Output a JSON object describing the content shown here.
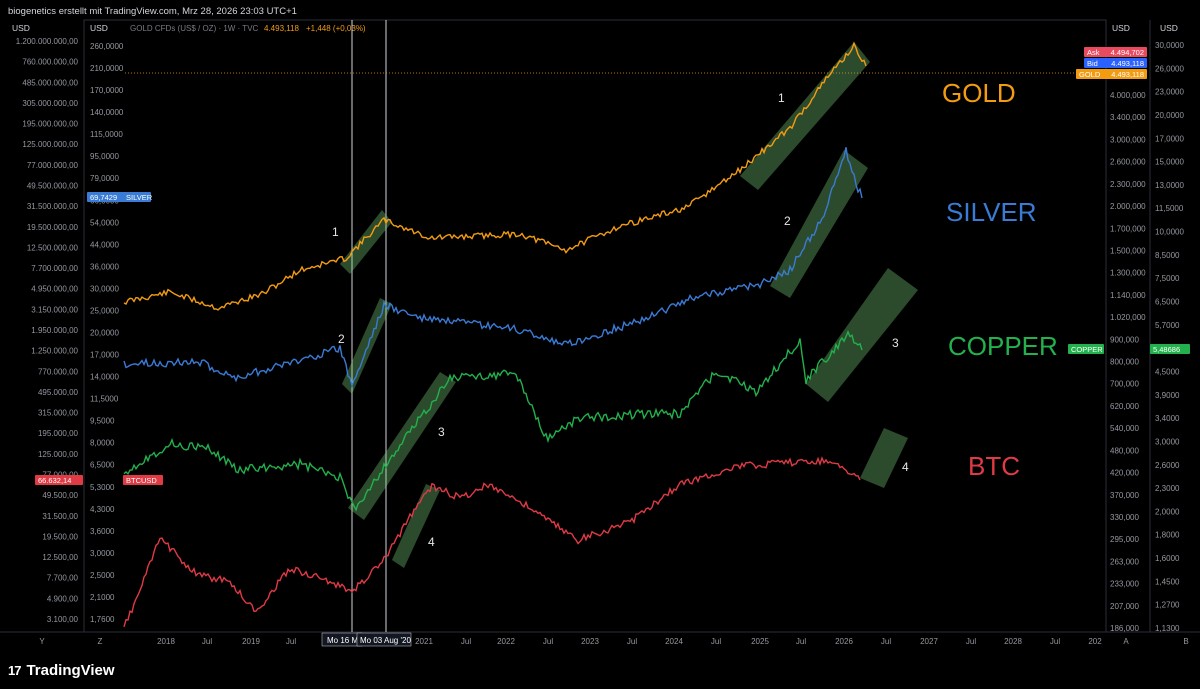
{
  "header": {
    "author_line": "biogenetics erstellt mit TradingView.com, Mrz 28, 2026 23:03 UTC+1",
    "instrument": "GOLD CFDs (US$ / OZ) · 1W · TVC",
    "price": "4.493,118",
    "change": "+1,448 (+0,03%)"
  },
  "axes": {
    "currency": "USD",
    "btc_scale": [
      "1.200.000.000,00",
      "760.000.000,00",
      "485.000.000,00",
      "305.000.000,00",
      "195.000.000,00",
      "125.000.000,00",
      "77.000.000,00",
      "49.500.000,00",
      "31.500.000,00",
      "19.500.000,00",
      "12.500.000,00",
      "7.700.000,00",
      "4.950.000,00",
      "3.150.000,00",
      "1.950.000,00",
      "1.250.000,00",
      "770.000,00",
      "495.000,00",
      "315.000,00",
      "195.000,00",
      "125.000,00",
      "77.000,00",
      "49.500,00",
      "31.500,00",
      "19.500,00",
      "12.500,00",
      "7.700,00",
      "4.900,00",
      "3.100,00"
    ],
    "copper_scale": [
      "260,0000",
      "210,0000",
      "170,0000",
      "140,0000",
      "115,0000",
      "95,0000",
      "79,0000",
      "66,0000",
      "54,0000",
      "44,0000",
      "36,0000",
      "30,0000",
      "25,0000",
      "20,0000",
      "17,0000",
      "14,0000",
      "11,5000",
      "9,5000",
      "8,0000",
      "6,5000",
      "5,3000",
      "4,3000",
      "3,6000",
      "3,0000",
      "2,5000",
      "2,1000",
      "1,7600"
    ],
    "gold_scale": [
      "4.000,000",
      "3.400,000",
      "3.000,000",
      "2.600,000",
      "2.300,000",
      "2.000,000",
      "1.700,000",
      "1.500,000",
      "1.300,000",
      "1.140,000",
      "1.020,000",
      "900,000",
      "800,000",
      "700,000",
      "620,000",
      "540,000",
      "480,000",
      "420,000",
      "370,000",
      "330,000",
      "295,000",
      "263,000",
      "233,000",
      "207,000",
      "186,000"
    ],
    "silver_scale": [
      "30,0000",
      "26,0000",
      "23,0000",
      "20,0000",
      "17,0000",
      "15,0000",
      "13,0000",
      "11,5000",
      "10,0000",
      "8,5000",
      "7,5000",
      "6,5000",
      "5,7000",
      "5,1000",
      "4,5000",
      "3,9000",
      "3,4000",
      "3,0000",
      "2,6000",
      "2,3000",
      "2,0000",
      "1,8000",
      "1,6000",
      "1,4500",
      "1,2700",
      "1,1300"
    ],
    "x_ticks": [
      "2018",
      "Jul",
      "2019",
      "Jul",
      "2021",
      "Jul",
      "2022",
      "Jul",
      "2023",
      "Jul",
      "2024",
      "Jul",
      "2025",
      "Jul",
      "2026",
      "Jul",
      "2027",
      "Jul",
      "2028",
      "Jul",
      "202"
    ],
    "crosshair_labels": [
      "Mo 16 M",
      "Mo 03 Aug '20"
    ],
    "scale_letters": [
      "Y",
      "Z",
      "A",
      "B"
    ]
  },
  "price_tags": {
    "ask_label": "Ask",
    "ask_value": "4.494,702",
    "bid_label": "Bid",
    "bid_value": "4.493,118",
    "gold_label": "GOLD",
    "gold_value": "4.493,118",
    "silver_value": "69,7429",
    "silver_label": "SILVER",
    "btc_value": "66.632,14",
    "btc_label": "BTCUSD",
    "copper_label": "COPPER",
    "copper_value": "5,48686"
  },
  "labels": {
    "gold": "GOLD",
    "silver": "SILVER",
    "copper": "COPPER",
    "btc": "BTC",
    "n1": "1",
    "n2": "2",
    "n3": "3",
    "n4": "4"
  },
  "colors": {
    "gold": "#f39c12",
    "silver": "#3a7bd5",
    "copper": "#22b14c",
    "btc": "#e03a45",
    "channel": "#7ed67e",
    "ask": "#e84a5f",
    "bid": "#2962ff"
  },
  "footer": {
    "brand": "TradingView",
    "brand_mark": "17"
  },
  "chart_data": {
    "type": "line",
    "title": "GOLD CFDs (US$ / OZ) · 1W · TVC",
    "x": [
      "2018",
      "2019",
      "2020",
      "2021",
      "2022",
      "2023",
      "2024",
      "2025",
      "2026"
    ],
    "series": [
      {
        "name": "GOLD",
        "values": [
          1330,
          1290,
          1700,
          1850,
          1800,
          1850,
          2050,
          2650,
          4493
        ]
      },
      {
        "name": "SILVER",
        "values": [
          16.8,
          15.5,
          18,
          26,
          23,
          21,
          23,
          30,
          69.74
        ]
      },
      {
        "name": "COPPER",
        "values": [
          3.1,
          2.7,
          2.7,
          4.4,
          4.4,
          3.6,
          3.8,
          4.4,
          5.49
        ]
      },
      {
        "name": "BTCUSD",
        "values": [
          14000,
          3800,
          9000,
          33000,
          46000,
          17000,
          42000,
          94000,
          66632.14
        ]
      }
    ]
  }
}
